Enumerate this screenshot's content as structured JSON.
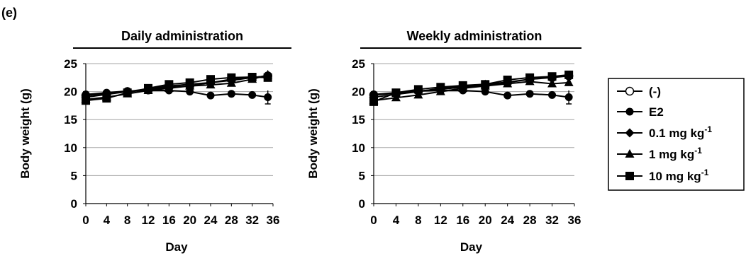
{
  "panel_label": "(e)",
  "legend": {
    "entries": [
      {
        "label": "(-)",
        "marker": "circle-open"
      },
      {
        "label": "E2",
        "marker": "circle"
      },
      {
        "label": "0.1 mg kg",
        "sup": "-1",
        "marker": "diamond"
      },
      {
        "label": "1 mg kg",
        "sup": "-1",
        "marker": "triangle"
      },
      {
        "label": "10 mg kg",
        "sup": "-1",
        "marker": "square"
      }
    ]
  },
  "chart_data": [
    {
      "type": "line",
      "title": "Daily administration",
      "xlabel": "Day",
      "ylabel": "Body weight (g)",
      "xlim": [
        0,
        36
      ],
      "ylim": [
        0,
        25
      ],
      "x_ticks": [
        0,
        4,
        8,
        12,
        16,
        20,
        24,
        28,
        32,
        36
      ],
      "y_ticks": [
        0,
        5,
        10,
        15,
        20,
        25
      ],
      "grid": "horizontal",
      "x": [
        0,
        4,
        8,
        12,
        16,
        20,
        24,
        28,
        32,
        35
      ],
      "series": [
        {
          "name": "(-)",
          "marker": "circle-open",
          "values": [
            19.3,
            19.6,
            20.0,
            20.3,
            20.8,
            21.0,
            21.6,
            22.2,
            22.5,
            22.8
          ]
        },
        {
          "name": "E2",
          "marker": "circle",
          "values": [
            19.5,
            19.8,
            20.1,
            20.2,
            20.2,
            20.0,
            19.3,
            19.6,
            19.4,
            19.0
          ]
        },
        {
          "name": "0.1 mg kg-1",
          "marker": "diamond",
          "values": [
            19.0,
            19.5,
            20.0,
            20.5,
            21.0,
            21.3,
            21.6,
            22.0,
            22.5,
            22.8
          ]
        },
        {
          "name": "1 mg kg-1",
          "marker": "triangle",
          "values": [
            18.6,
            19.0,
            19.6,
            20.2,
            20.6,
            21.0,
            21.2,
            21.5,
            22.2,
            23.0
          ]
        },
        {
          "name": "10 mg kg-1",
          "marker": "square",
          "values": [
            18.4,
            18.8,
            19.8,
            20.6,
            21.3,
            21.6,
            22.2,
            22.5,
            22.6,
            22.5
          ]
        }
      ]
    },
    {
      "type": "line",
      "title": "Weekly administration",
      "xlabel": "Day",
      "ylabel": "Body weight (g)",
      "xlim": [
        0,
        36
      ],
      "ylim": [
        0,
        25
      ],
      "x_ticks": [
        0,
        4,
        8,
        12,
        16,
        20,
        24,
        28,
        32,
        36
      ],
      "y_ticks": [
        0,
        5,
        10,
        15,
        20,
        25
      ],
      "grid": "horizontal",
      "x": [
        0,
        4,
        8,
        12,
        16,
        20,
        24,
        28,
        32,
        35
      ],
      "series": [
        {
          "name": "(-)",
          "marker": "circle-open",
          "values": [
            19.4,
            19.7,
            20.1,
            20.4,
            20.8,
            21.1,
            21.6,
            22.2,
            22.5,
            22.8
          ]
        },
        {
          "name": "E2",
          "marker": "circle",
          "values": [
            19.5,
            19.8,
            20.1,
            20.2,
            20.2,
            20.0,
            19.3,
            19.6,
            19.4,
            19.0
          ]
        },
        {
          "name": "0.1 mg kg-1",
          "marker": "diamond",
          "values": [
            19.0,
            19.5,
            20.0,
            20.6,
            21.0,
            21.3,
            21.7,
            22.2,
            22.6,
            22.8
          ]
        },
        {
          "name": "1 mg kg-1",
          "marker": "triangle",
          "values": [
            18.4,
            18.9,
            19.4,
            20.0,
            20.6,
            21.0,
            21.4,
            21.8,
            21.4,
            21.6
          ]
        },
        {
          "name": "10 mg kg-1",
          "marker": "square",
          "values": [
            18.2,
            19.8,
            20.4,
            20.8,
            21.1,
            21.3,
            22.1,
            22.5,
            22.7,
            23.0
          ]
        }
      ]
    }
  ]
}
